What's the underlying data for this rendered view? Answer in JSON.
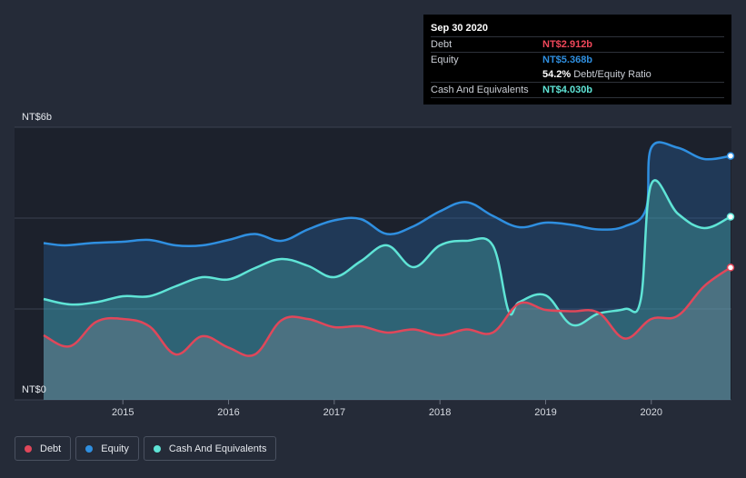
{
  "chart_data": {
    "type": "area",
    "y_top_label": "NT$6b",
    "y_bottom_label": "NT$0",
    "ylim": [
      0,
      6
    ],
    "xlim": [
      2014.25,
      2020.75
    ],
    "x_ticks": [
      {
        "value": 2015,
        "label": "2015"
      },
      {
        "value": 2016,
        "label": "2016"
      },
      {
        "value": 2017,
        "label": "2017"
      },
      {
        "value": 2018,
        "label": "2018"
      },
      {
        "value": 2019,
        "label": "2019"
      },
      {
        "value": 2020,
        "label": "2020"
      }
    ],
    "series": [
      {
        "name": "Equity",
        "color": "#2f8fe0",
        "x": [
          2014.25,
          2014.45,
          2014.7,
          2015.0,
          2015.25,
          2015.5,
          2015.75,
          2016.0,
          2016.25,
          2016.5,
          2016.75,
          2017.0,
          2017.25,
          2017.5,
          2017.75,
          2018.0,
          2018.25,
          2018.5,
          2018.75,
          2019.0,
          2019.25,
          2019.5,
          2019.75,
          2019.95,
          2020.0,
          2020.25,
          2020.5,
          2020.75
        ],
        "y": [
          3.45,
          3.4,
          3.45,
          3.48,
          3.52,
          3.4,
          3.4,
          3.52,
          3.65,
          3.5,
          3.75,
          3.95,
          3.98,
          3.65,
          3.82,
          4.15,
          4.35,
          4.05,
          3.8,
          3.9,
          3.85,
          3.75,
          3.82,
          4.2,
          5.55,
          5.55,
          5.3,
          5.368
        ]
      },
      {
        "name": "Cash And Equivalents",
        "color": "#5fe4d6",
        "x": [
          2014.25,
          2014.5,
          2014.75,
          2015.0,
          2015.25,
          2015.5,
          2015.75,
          2016.0,
          2016.25,
          2016.5,
          2016.75,
          2017.0,
          2017.25,
          2017.5,
          2017.75,
          2018.0,
          2018.25,
          2018.5,
          2018.65,
          2018.75,
          2019.0,
          2019.25,
          2019.5,
          2019.75,
          2019.9,
          2020.0,
          2020.25,
          2020.5,
          2020.75
        ],
        "y": [
          2.22,
          2.1,
          2.15,
          2.28,
          2.28,
          2.5,
          2.7,
          2.65,
          2.9,
          3.1,
          2.95,
          2.7,
          3.05,
          3.4,
          2.92,
          3.4,
          3.5,
          3.4,
          1.95,
          2.15,
          2.3,
          1.65,
          1.9,
          2.0,
          2.2,
          4.75,
          4.1,
          3.78,
          4.03
        ]
      },
      {
        "name": "Debt",
        "color": "#e0475a",
        "x": [
          2014.25,
          2014.5,
          2014.75,
          2015.0,
          2015.25,
          2015.5,
          2015.75,
          2016.0,
          2016.25,
          2016.5,
          2016.75,
          2017.0,
          2017.25,
          2017.5,
          2017.75,
          2018.0,
          2018.25,
          2018.5,
          2018.75,
          2019.0,
          2019.25,
          2019.5,
          2019.75,
          2020.0,
          2020.25,
          2020.5,
          2020.75
        ],
        "y": [
          1.42,
          1.18,
          1.72,
          1.78,
          1.62,
          1.0,
          1.4,
          1.15,
          1.0,
          1.75,
          1.78,
          1.6,
          1.62,
          1.48,
          1.55,
          1.42,
          1.55,
          1.48,
          2.12,
          1.98,
          1.95,
          1.92,
          1.35,
          1.78,
          1.85,
          2.5,
          2.912
        ]
      }
    ]
  },
  "tooltip": {
    "date": "Sep 30 2020",
    "rows": [
      {
        "label": "Debt",
        "value": "NT$2.912b",
        "color": "#f0475a"
      },
      {
        "label": "Equity",
        "value": "NT$5.368b",
        "color": "#2f8fe0"
      },
      {
        "label": "",
        "value": "54.2%",
        "color": "#ffffff",
        "suffix": "Debt/Equity Ratio"
      },
      {
        "label": "Cash And Equivalents",
        "value": "NT$4.030b",
        "color": "#5fe4d6"
      }
    ]
  },
  "legend": [
    {
      "label": "Debt",
      "color": "#e0475a"
    },
    {
      "label": "Equity",
      "color": "#2f8fe0"
    },
    {
      "label": "Cash And Equivalents",
      "color": "#5fe4d6"
    }
  ]
}
